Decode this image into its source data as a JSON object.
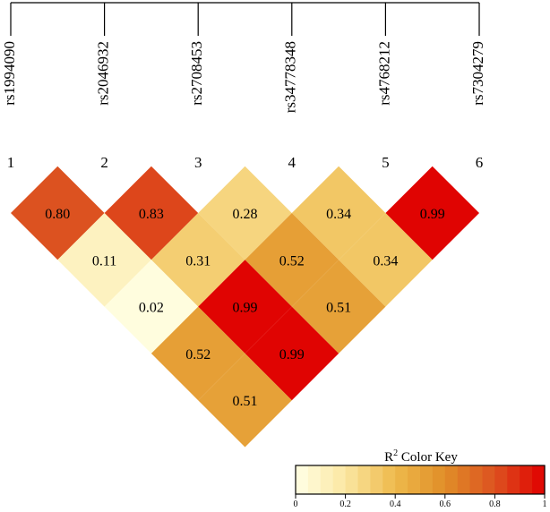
{
  "chart_data": {
    "type": "heatmap",
    "variant": "LD triangle (R²)",
    "snps": [
      {
        "index": "1",
        "name": "rs1994090"
      },
      {
        "index": "2",
        "name": "rs2046932"
      },
      {
        "index": "3",
        "name": "rs2708453"
      },
      {
        "index": "4",
        "name": "rs34778348"
      },
      {
        "index": "5",
        "name": "rs4768212"
      },
      {
        "index": "6",
        "name": "rs7304279"
      }
    ],
    "pairs": [
      {
        "i": 1,
        "j": 2,
        "value": 0.8,
        "label": "0.80"
      },
      {
        "i": 2,
        "j": 3,
        "value": 0.83,
        "label": "0.83"
      },
      {
        "i": 3,
        "j": 4,
        "value": 0.28,
        "label": "0.28"
      },
      {
        "i": 4,
        "j": 5,
        "value": 0.34,
        "label": "0.34"
      },
      {
        "i": 5,
        "j": 6,
        "value": 0.99,
        "label": "0.99"
      },
      {
        "i": 1,
        "j": 3,
        "value": 0.11,
        "label": "0.11"
      },
      {
        "i": 2,
        "j": 4,
        "value": 0.31,
        "label": "0.31"
      },
      {
        "i": 3,
        "j": 5,
        "value": 0.52,
        "label": "0.52"
      },
      {
        "i": 4,
        "j": 6,
        "value": 0.34,
        "label": "0.34"
      },
      {
        "i": 1,
        "j": 4,
        "value": 0.02,
        "label": "0.02"
      },
      {
        "i": 2,
        "j": 5,
        "value": 0.99,
        "label": "0.99"
      },
      {
        "i": 3,
        "j": 6,
        "value": 0.51,
        "label": "0.51"
      },
      {
        "i": 1,
        "j": 5,
        "value": 0.52,
        "label": "0.52"
      },
      {
        "i": 2,
        "j": 6,
        "value": 0.99,
        "label": "0.99"
      },
      {
        "i": 1,
        "j": 6,
        "value": 0.51,
        "label": "0.51"
      }
    ],
    "color_key": {
      "title_main": "R",
      "title_sup": "2",
      "title_rest": " Color Key",
      "range": [
        0,
        1
      ],
      "ticks": [
        "0",
        "0.2",
        "0.4",
        "0.6",
        "0.8",
        "1"
      ],
      "colors": [
        "#ffffe5",
        "#fbe7a2",
        "#eeb94b",
        "#e08d28",
        "#dc5220",
        "#e00000"
      ]
    }
  }
}
